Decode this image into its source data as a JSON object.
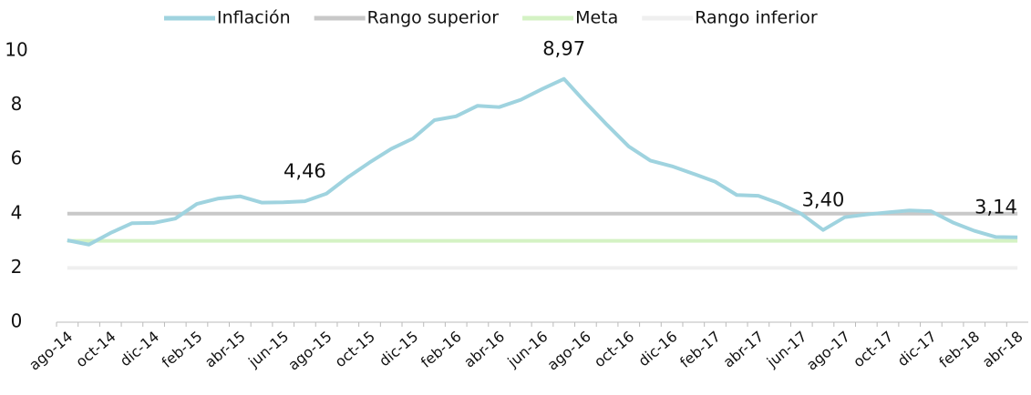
{
  "chart_data": {
    "type": "line",
    "categories": [
      "ago-14",
      null,
      "oct-14",
      null,
      "dic-14",
      null,
      "feb-15",
      null,
      "abr-15",
      null,
      "jun-15",
      null,
      "ago-15",
      null,
      "oct-15",
      null,
      "dic-15",
      null,
      "feb-16",
      null,
      "abr-16",
      null,
      "jun-16",
      null,
      "ago-16",
      null,
      "oct-16",
      null,
      "dic-16",
      null,
      "feb-17",
      null,
      "abr-17",
      null,
      "jun-17",
      null,
      "ago-17",
      null,
      "oct-17",
      null,
      "dic-17",
      null,
      "feb-18",
      null,
      "abr-18"
    ],
    "series": [
      {
        "name": "Inflación",
        "color": "#9fd3df",
        "values": [
          3.02,
          2.86,
          3.29,
          3.65,
          3.66,
          3.82,
          4.36,
          4.56,
          4.64,
          4.41,
          4.42,
          4.46,
          4.74,
          5.35,
          5.89,
          6.39,
          6.77,
          7.45,
          7.59,
          7.98,
          7.93,
          8.2,
          8.6,
          8.97,
          8.1,
          7.27,
          6.48,
          5.96,
          5.75,
          5.47,
          5.18,
          4.69,
          4.66,
          4.37,
          3.99,
          3.4,
          3.87,
          3.97,
          4.05,
          4.12,
          4.09,
          3.68,
          3.37,
          3.14,
          3.13
        ],
        "value_labels": [
          null,
          null,
          null,
          null,
          null,
          null,
          null,
          null,
          null,
          null,
          null,
          "4,46",
          null,
          null,
          null,
          null,
          null,
          null,
          null,
          null,
          null,
          null,
          null,
          "8,97",
          null,
          null,
          null,
          null,
          null,
          null,
          null,
          null,
          null,
          null,
          null,
          "3,40",
          null,
          null,
          null,
          null,
          null,
          null,
          null,
          "3,14",
          null
        ]
      },
      {
        "name": "Rango superior",
        "color": "#c8c8c8",
        "values": [
          4,
          4,
          4,
          4,
          4,
          4,
          4,
          4,
          4,
          4,
          4,
          4,
          4,
          4,
          4,
          4,
          4,
          4,
          4,
          4,
          4,
          4,
          4,
          4,
          4,
          4,
          4,
          4,
          4,
          4,
          4,
          4,
          4,
          4,
          4,
          4,
          4,
          4,
          4,
          4,
          4,
          4,
          4,
          4,
          4
        ]
      },
      {
        "name": "Meta",
        "color": "#d4f2c4",
        "values": [
          3,
          3,
          3,
          3,
          3,
          3,
          3,
          3,
          3,
          3,
          3,
          3,
          3,
          3,
          3,
          3,
          3,
          3,
          3,
          3,
          3,
          3,
          3,
          3,
          3,
          3,
          3,
          3,
          3,
          3,
          3,
          3,
          3,
          3,
          3,
          3,
          3,
          3,
          3,
          3,
          3,
          3,
          3,
          3,
          3
        ]
      },
      {
        "name": "Rango inferior",
        "color": "#efefef",
        "values": [
          2,
          2,
          2,
          2,
          2,
          2,
          2,
          2,
          2,
          2,
          2,
          2,
          2,
          2,
          2,
          2,
          2,
          2,
          2,
          2,
          2,
          2,
          2,
          2,
          2,
          2,
          2,
          2,
          2,
          2,
          2,
          2,
          2,
          2,
          2,
          2,
          2,
          2,
          2,
          2,
          2,
          2,
          2,
          2,
          2
        ]
      }
    ],
    "ylim": [
      0,
      10
    ],
    "yticks": [
      0,
      2,
      4,
      6,
      8,
      10
    ],
    "grid": false,
    "legend": "top"
  }
}
